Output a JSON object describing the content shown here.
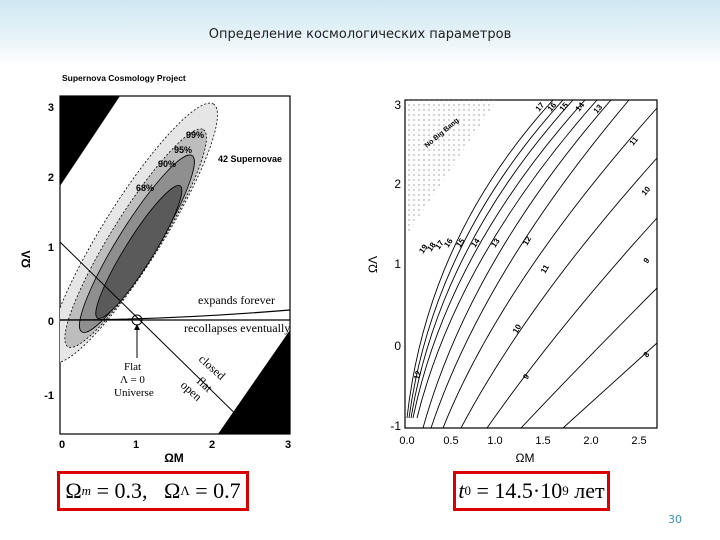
{
  "slide": {
    "title": "Определение космологических параметров",
    "page_number": "30"
  },
  "left_plot": {
    "project_label": "Supernova Cosmology Project",
    "supernovae_label": "42 Supernovae",
    "contours": [
      "99%",
      "95%",
      "90%",
      "68%"
    ],
    "x_axis_label": "ΩM",
    "y_axis_label": "ΩΛ",
    "x_ticks": [
      "0",
      "1",
      "2",
      "3"
    ],
    "y_ticks": [
      "3",
      "2",
      "1",
      "0",
      "-1"
    ],
    "annotations": {
      "expands": "expands forever",
      "recollapses": "recollapses eventually",
      "flat1": "Flat",
      "flat2": "Λ = 0",
      "flat3": "Universe",
      "closed": "closed",
      "flat": "flat",
      "open": "open"
    }
  },
  "right_plot": {
    "no_big_bang": "No Big Bang",
    "x_axis_label": "ΩM",
    "y_axis_label": "ΩΛ",
    "x_ticks": [
      "0.0",
      "0.5",
      "1.0",
      "1.5",
      "2.0",
      "2.5"
    ],
    "y_ticks": [
      "3",
      "2",
      "1",
      "0",
      "-1"
    ],
    "age_contours": [
      "19",
      "18",
      "17",
      "16",
      "15",
      "14",
      "13",
      "12",
      "11",
      "10",
      "9",
      "8"
    ]
  },
  "formulas": {
    "left_omega": "Ω",
    "left_m": "m",
    "left_rest": " = 0.3,   Ω",
    "left_lambda": "Λ",
    "left_value": " = 0.7",
    "right_t": "t",
    "right_sub": "0",
    "right_mid": " = 14.5·10",
    "right_exp": "9",
    "right_unit": " лет"
  }
}
